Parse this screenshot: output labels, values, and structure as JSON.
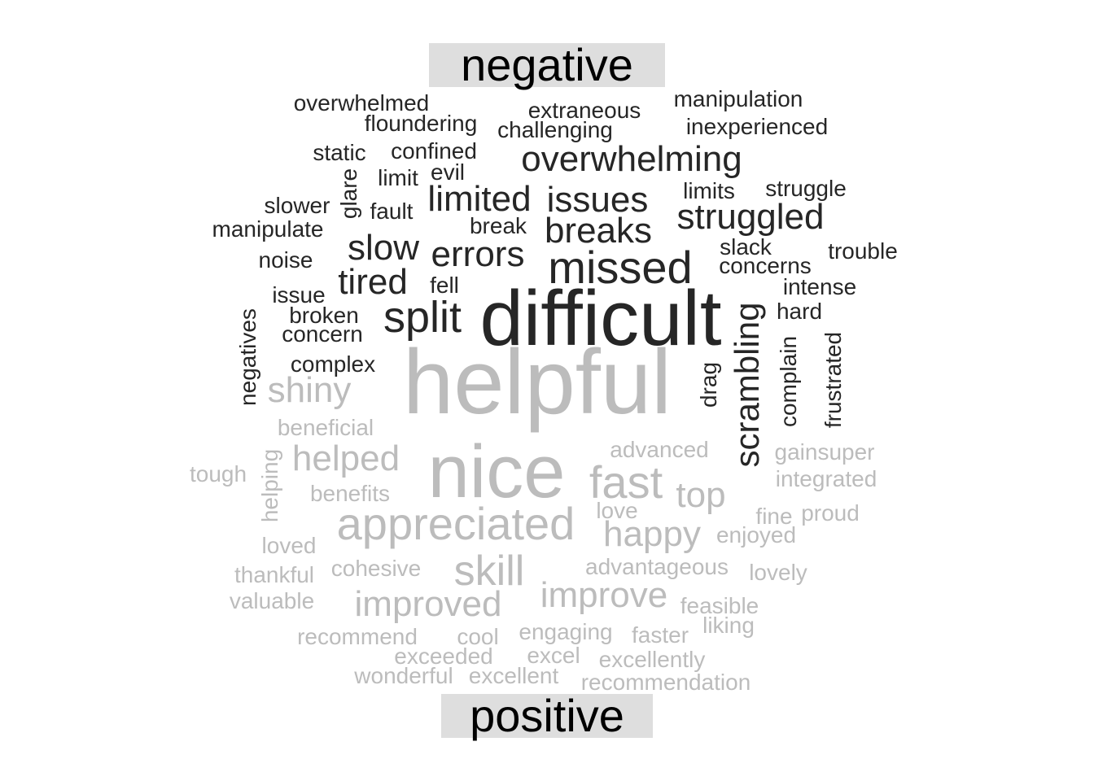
{
  "groups": {
    "negative": "negative",
    "positive": "positive"
  },
  "colors": {
    "negative": "#262626",
    "positive": "#bcbcbc",
    "label_bg": "#dedede"
  },
  "words": {
    "negative": [
      {
        "text": "difficult",
        "rel": 1.0
      },
      {
        "text": "missed",
        "rel": 0.5
      },
      {
        "text": "split",
        "rel": 0.48
      },
      {
        "text": "errors",
        "rel": 0.36
      },
      {
        "text": "slow",
        "rel": 0.36
      },
      {
        "text": "tired",
        "rel": 0.36
      },
      {
        "text": "breaks",
        "rel": 0.36
      },
      {
        "text": "limited",
        "rel": 0.36
      },
      {
        "text": "issues",
        "rel": 0.36
      },
      {
        "text": "overwhelming",
        "rel": 0.36
      },
      {
        "text": "struggled",
        "rel": 0.36
      },
      {
        "text": "scrambling",
        "rel": 0.36
      },
      {
        "text": "overwhelmed",
        "rel": 0.2
      },
      {
        "text": "floundering",
        "rel": 0.2
      },
      {
        "text": "extraneous",
        "rel": 0.2
      },
      {
        "text": "challenging",
        "rel": 0.2
      },
      {
        "text": "manipulation",
        "rel": 0.2
      },
      {
        "text": "inexperienced",
        "rel": 0.2
      },
      {
        "text": "static",
        "rel": 0.2
      },
      {
        "text": "confined",
        "rel": 0.2
      },
      {
        "text": "evil",
        "rel": 0.2
      },
      {
        "text": "limit",
        "rel": 0.2
      },
      {
        "text": "glare",
        "rel": 0.2
      },
      {
        "text": "slower",
        "rel": 0.2
      },
      {
        "text": "fault",
        "rel": 0.2
      },
      {
        "text": "manipulate",
        "rel": 0.2
      },
      {
        "text": "break",
        "rel": 0.2
      },
      {
        "text": "limits",
        "rel": 0.2
      },
      {
        "text": "struggle",
        "rel": 0.2
      },
      {
        "text": "slack",
        "rel": 0.2
      },
      {
        "text": "trouble",
        "rel": 0.2
      },
      {
        "text": "concerns",
        "rel": 0.2
      },
      {
        "text": "noise",
        "rel": 0.2
      },
      {
        "text": "fell",
        "rel": 0.2
      },
      {
        "text": "issue",
        "rel": 0.2
      },
      {
        "text": "intense",
        "rel": 0.2
      },
      {
        "text": "broken",
        "rel": 0.2
      },
      {
        "text": "hard",
        "rel": 0.2
      },
      {
        "text": "concern",
        "rel": 0.2
      },
      {
        "text": "negatives",
        "rel": 0.2
      },
      {
        "text": "complex",
        "rel": 0.2
      },
      {
        "text": "complain",
        "rel": 0.2
      },
      {
        "text": "frustrated",
        "rel": 0.2
      },
      {
        "text": "drag",
        "rel": 0.2
      }
    ],
    "positive": [
      {
        "text": "helpful",
        "rel": 1.0
      },
      {
        "text": "nice",
        "rel": 0.8
      },
      {
        "text": "appreciated",
        "rel": 0.5
      },
      {
        "text": "fast",
        "rel": 0.5
      },
      {
        "text": "skill",
        "rel": 0.45
      },
      {
        "text": "helped",
        "rel": 0.36
      },
      {
        "text": "improved",
        "rel": 0.36
      },
      {
        "text": "improve",
        "rel": 0.36
      },
      {
        "text": "shiny",
        "rel": 0.36
      },
      {
        "text": "happy",
        "rel": 0.36
      },
      {
        "text": "top",
        "rel": 0.36
      },
      {
        "text": "beneficial",
        "rel": 0.2
      },
      {
        "text": "advanced",
        "rel": 0.2
      },
      {
        "text": "gainsuper",
        "rel": 0.2
      },
      {
        "text": "integrated",
        "rel": 0.2
      },
      {
        "text": "tough",
        "rel": 0.2
      },
      {
        "text": "helping",
        "rel": 0.2
      },
      {
        "text": "benefits",
        "rel": 0.2
      },
      {
        "text": "love",
        "rel": 0.2
      },
      {
        "text": "fine",
        "rel": 0.2
      },
      {
        "text": "proud",
        "rel": 0.2
      },
      {
        "text": "enjoyed",
        "rel": 0.2
      },
      {
        "text": "loved",
        "rel": 0.2
      },
      {
        "text": "thankful",
        "rel": 0.2
      },
      {
        "text": "cohesive",
        "rel": 0.2
      },
      {
        "text": "advantageous",
        "rel": 0.2
      },
      {
        "text": "lovely",
        "rel": 0.2
      },
      {
        "text": "valuable",
        "rel": 0.2
      },
      {
        "text": "feasible",
        "rel": 0.2
      },
      {
        "text": "liking",
        "rel": 0.2
      },
      {
        "text": "recommend",
        "rel": 0.2
      },
      {
        "text": "cool",
        "rel": 0.2
      },
      {
        "text": "engaging",
        "rel": 0.2
      },
      {
        "text": "faster",
        "rel": 0.2
      },
      {
        "text": "exceeded",
        "rel": 0.2
      },
      {
        "text": "excel",
        "rel": 0.2
      },
      {
        "text": "excellently",
        "rel": 0.2
      },
      {
        "text": "wonderful",
        "rel": 0.2
      },
      {
        "text": "excellent",
        "rel": 0.2
      },
      {
        "text": "recommendation",
        "rel": 0.2
      }
    ]
  }
}
